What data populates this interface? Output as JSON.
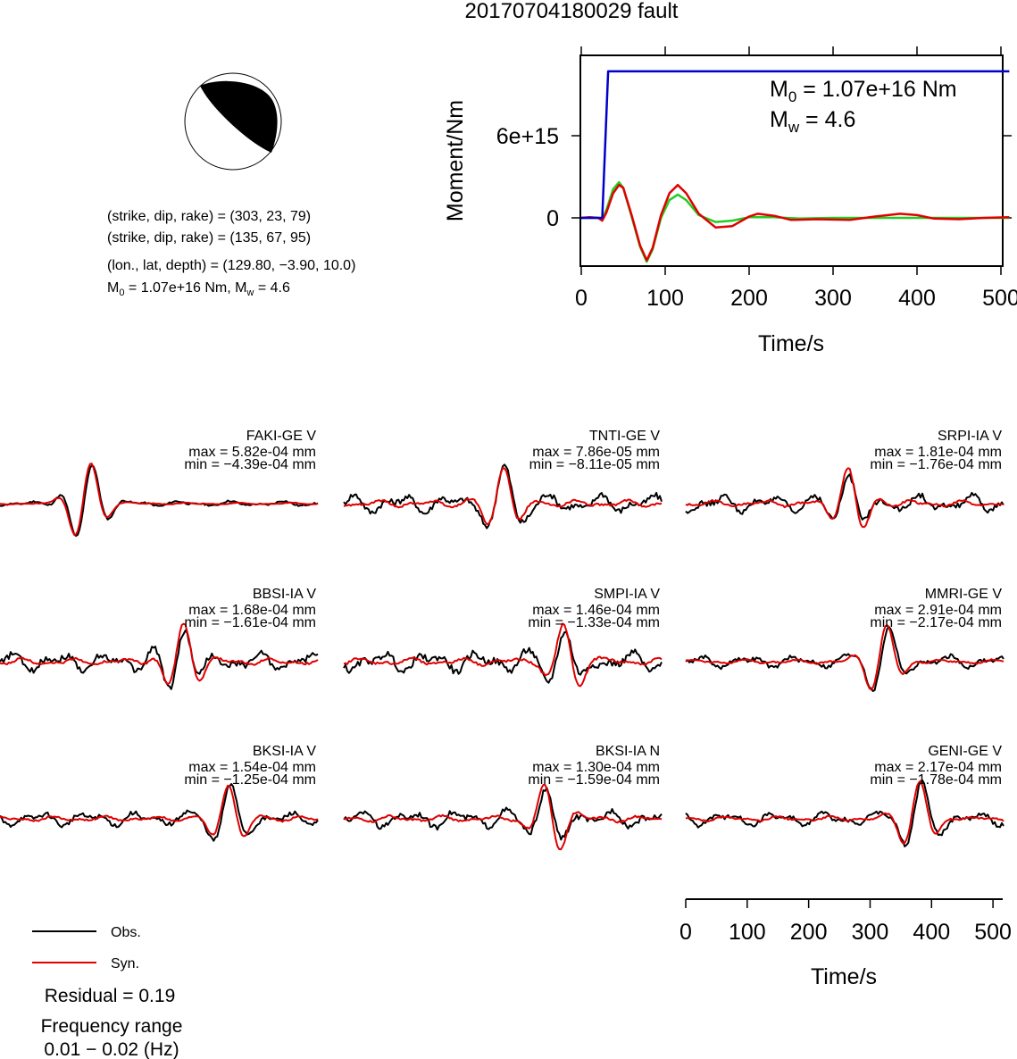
{
  "title": "20170704180029 fault",
  "mechanism": {
    "line1": "(strike, dip, rake) = (303, 23, 79)",
    "line2": "(strike, dip, rake) = (135, 67, 95)",
    "location": "(lon., lat, depth) = (129.80, −3.90, 10.0)",
    "magnitude_m0_prefix": "M",
    "magnitude_m0_sub": "0",
    "magnitude_rest": " = 1.07e+16 Nm, M",
    "magnitude_w_sub": "w",
    "magnitude_w_val": " = 4.6"
  },
  "moment_plot": {
    "ylabel": "Moment/Nm",
    "xlabel": "Time/s",
    "y_tick_labels": [
      "6e+15",
      "0"
    ],
    "x_tick_labels": [
      "0",
      "100",
      "200",
      "300",
      "400",
      "500"
    ],
    "m0_label_prefix": "M",
    "m0_label_sub": "0",
    "m0_label_value": " = 1.07e+16 Nm",
    "mw_label_prefix": "M",
    "mw_label_sub": "w",
    "mw_label_value": " = 4.6",
    "colors": {
      "cumulative": "#0000cc",
      "rate_red": "#e00000",
      "rate_green": "#22cc22"
    }
  },
  "waveform_axis": {
    "xlabel": "Time/s",
    "x_tick_labels": [
      "0",
      "100",
      "200",
      "300",
      "400",
      "500"
    ]
  },
  "legend": {
    "obs_label": "Obs.",
    "syn_label": "Syn.",
    "obs_color": "#000000",
    "syn_color": "#e00000"
  },
  "residual_text": "Residual = 0.19",
  "frequency_title": "Frequency range",
  "frequency_value": "0.01 − 0.02 (Hz)",
  "chart_data": [
    {
      "type": "line",
      "title": "",
      "xlabel": "Time/s",
      "ylabel": "Moment/Nm",
      "xlim": [
        0,
        510
      ],
      "ylim": [
        -3500000000000000.0,
        1.2e+16
      ],
      "series": [
        {
          "x": [
            0,
            25,
            32,
            510
          ],
          "values": [
            0,
            0,
            1.07e+16,
            1.07e+16
          ]
        },
        {
          "x": [
            0,
            10,
            20,
            25,
            30,
            38,
            45,
            50,
            60,
            70,
            78,
            85,
            95,
            105,
            115,
            125,
            140,
            160,
            180,
            200,
            210,
            230,
            250,
            280,
            320,
            350,
            380,
            400,
            420,
            450,
            480,
            510
          ],
          "values": [
            0,
            50000000000000.0,
            0,
            -200000000000000.0,
            400000000000000.0,
            1800000000000000.0,
            2400000000000000.0,
            2200000000000000.0,
            200000000000000.0,
            -2000000000000000.0,
            -3100000000000000.0,
            -2200000000000000.0,
            200000000000000.0,
            1800000000000000.0,
            2400000000000000.0,
            1800000000000000.0,
            300000000000000.0,
            -700000000000000.0,
            -600000000000000.0,
            100000000000000.0,
            300000000000000.0,
            150000000000000.0,
            -150000000000000.0,
            -100000000000000.0,
            -150000000000000.0,
            100000000000000.0,
            300000000000000.0,
            200000000000000.0,
            -50000000000000.0,
            -100000000000000.0,
            0.0,
            50000000000000.0
          ]
        },
        {
          "x": [
            0,
            20,
            25,
            30,
            38,
            45,
            50,
            60,
            70,
            78,
            85,
            95,
            105,
            115,
            125,
            140,
            160,
            180,
            200,
            230,
            260,
            300,
            400,
            510
          ],
          "values": [
            0,
            0,
            -100000000000000.0,
            600000000000000.0,
            2100000000000000.0,
            2600000000000000.0,
            2200000000000000.0,
            100000000000000.0,
            -2100000000000000.0,
            -3200000000000000.0,
            -2300000000000000.0,
            0.0,
            1300000000000000.0,
            1700000000000000.0,
            1300000000000000.0,
            200000000000000.0,
            -300000000000000.0,
            -200000000000000.0,
            50000000000000.0,
            50000000000000.0,
            -50000000000000.0,
            0.0,
            0.0,
            0.0
          ]
        }
      ]
    },
    {
      "type": "line",
      "title": "Waveform comparison (Obs. vs Syn.)",
      "xlabel": "Time/s",
      "xlim": [
        0,
        510
      ],
      "panels": [
        {
          "station": "FAKI-GE V",
          "max": "max = 5.82e-04 mm",
          "min": "min = −4.39e-04 mm"
        },
        {
          "station": "TNTI-GE V",
          "max": "max = 7.86e-05 mm",
          "min": "min = −8.11e-05 mm"
        },
        {
          "station": "SRPI-IA V",
          "max": "max = 1.81e-04 mm",
          "min": "min = −1.76e-04 mm"
        },
        {
          "station": "BBSI-IA V",
          "max": "max = 1.68e-04 mm",
          "min": "min = −1.61e-04 mm"
        },
        {
          "station": "SMPI-IA V",
          "max": "max = 1.46e-04 mm",
          "min": "min = −1.33e-04 mm"
        },
        {
          "station": "MMRI-GE V",
          "max": "max = 2.91e-04 mm",
          "min": "min = −2.17e-04 mm"
        },
        {
          "station": "BKSI-IA V",
          "max": "max = 1.54e-04 mm",
          "min": "min = −1.25e-04 mm"
        },
        {
          "station": "BKSI-IA N",
          "max": "max = 1.30e-04 mm",
          "min": "min = −1.59e-04 mm"
        },
        {
          "station": "GENI-GE V",
          "max": "max = 2.17e-04 mm",
          "min": "min = −1.78e-04 mm"
        }
      ]
    }
  ]
}
